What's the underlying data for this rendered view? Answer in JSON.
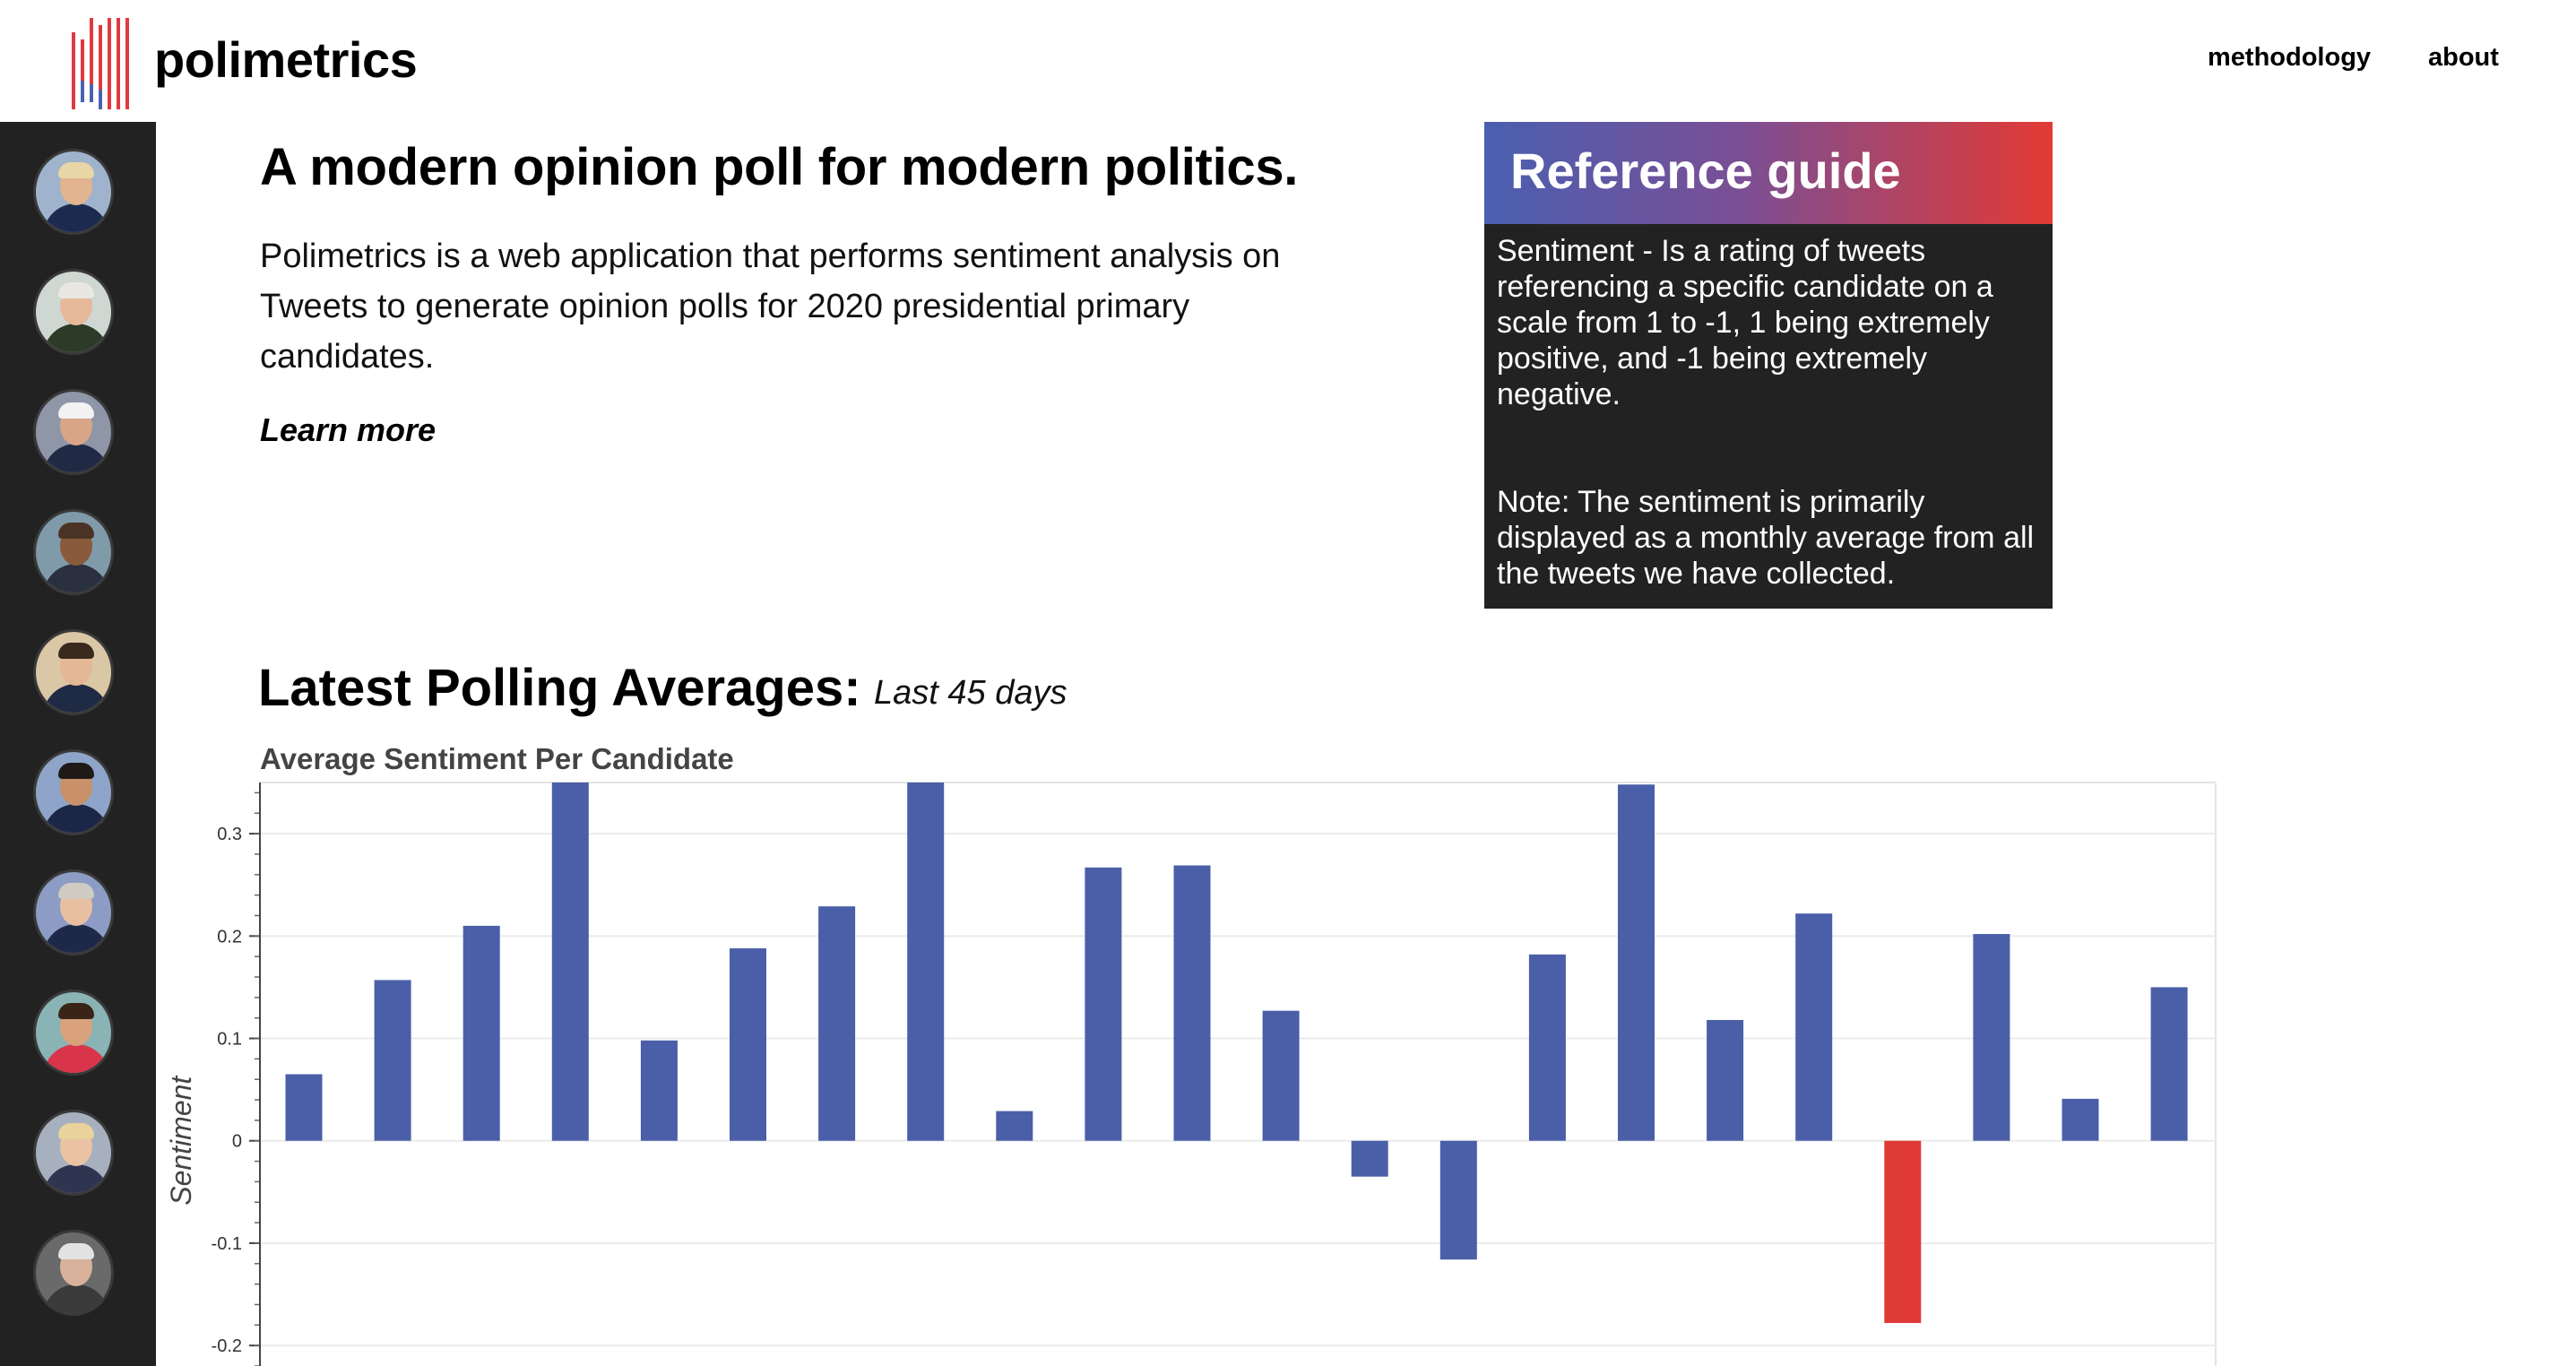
{
  "header": {
    "brand": "polimetrics",
    "nav": {
      "methodology": "methodology",
      "about": "about"
    },
    "logo_colors": {
      "red": "#e0393e",
      "blue": "#4a61b5"
    }
  },
  "sidebar": {
    "candidates": [
      {
        "name": "candidate-1",
        "skin": "#e2b48f",
        "body": "#1d2a50",
        "hair": "#e8d6a6",
        "bg": "#9fb3cc"
      },
      {
        "name": "candidate-2",
        "skin": "#e6b99a",
        "body": "#2d3a28",
        "hair": "#e9e7e2",
        "bg": "#cfd7d3"
      },
      {
        "name": "candidate-3",
        "skin": "#d9a587",
        "body": "#202a45",
        "hair": "#f2f2f2",
        "bg": "#8e96a8"
      },
      {
        "name": "candidate-4",
        "skin": "#8a5a3d",
        "body": "#2a3040",
        "hair": "#4a3324",
        "bg": "#7f9aa8"
      },
      {
        "name": "candidate-5",
        "skin": "#e4b896",
        "body": "#1f2a44",
        "hair": "#3a2a1d",
        "bg": "#d9c7a6"
      },
      {
        "name": "candidate-6",
        "skin": "#c89169",
        "body": "#1c2747",
        "hair": "#201a16",
        "bg": "#8ea4c8"
      },
      {
        "name": "candidate-7",
        "skin": "#e8bfa1",
        "body": "#1e2949",
        "hair": "#cfcac2",
        "bg": "#8c9cc4"
      },
      {
        "name": "candidate-8",
        "skin": "#d9a27d",
        "body": "#d8344a",
        "hair": "#3a2418",
        "bg": "#89b3b4"
      },
      {
        "name": "candidate-9",
        "skin": "#eac3a4",
        "body": "#2f3550",
        "hair": "#e8d39a",
        "bg": "#a6b0bf"
      },
      {
        "name": "candidate-10",
        "skin": "#d8b29a",
        "body": "#3a3a3a",
        "hair": "#e2e2e2",
        "bg": "#6a6a6a"
      }
    ]
  },
  "intro": {
    "title": "A modern opinion poll for modern politics.",
    "text": "Polimetrics is a web application that performs sentiment analysis on Tweets to generate opinion polls for 2020 presidential primary candidates.",
    "learn_more": "Learn more"
  },
  "reference": {
    "title": "Reference guide",
    "term": "Sentiment",
    "definition": " - Is a rating of tweets referencing a specific candidate on a scale from 1 to -1, 1 being extremely positive, and -1 being extremely negative.",
    "note": "Note: The sentiment is primarily displayed as a monthly average from all the tweets we have collected."
  },
  "latest": {
    "title": "Latest Polling Averages:",
    "subtitle": "Last 45 days"
  },
  "chart_data": {
    "type": "bar",
    "title": "Average Sentiment Per Candidate",
    "ylabel": "Sentiment",
    "xlabel": "",
    "ylim": [
      -0.22,
      0.35
    ],
    "yticks": [
      0.3,
      0.2,
      0.1,
      0,
      -0.1,
      -0.2
    ],
    "ytick_labels": [
      "0.3",
      "0.2",
      "0.1",
      "0",
      "-0.1",
      "-0.2"
    ],
    "grid": true,
    "colors": {
      "positive": "#4a5fa8",
      "negative": "#df3a37"
    },
    "values": [
      0.065,
      0.157,
      0.21,
      0.35,
      0.098,
      0.188,
      0.229,
      0.35,
      0.029,
      0.267,
      0.269,
      0.127,
      -0.035,
      -0.116,
      0.182,
      0.348,
      0.118,
      0.222,
      -0.178,
      0.202,
      0.041,
      0.15
    ]
  }
}
